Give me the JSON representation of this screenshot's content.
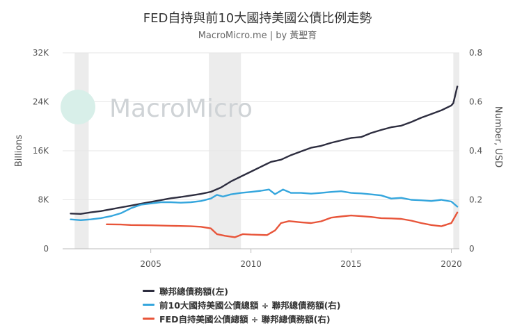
{
  "chart_data": {
    "type": "line",
    "title": "FED自持與前10大國持美國公債比例走勢",
    "subtitle": "MacroMicro.me | by 黃聖育",
    "watermark": "MacroMicro",
    "y_left": {
      "label": "Billions",
      "ticks": [
        "0",
        "8K",
        "16K",
        "24K",
        "32K"
      ],
      "range": [
        0,
        32000
      ]
    },
    "y_right": {
      "label": "Number, USD",
      "ticks": [
        "0",
        "0.2",
        "0.4",
        "0.6",
        "0.8"
      ],
      "range": [
        0,
        0.8
      ]
    },
    "x": {
      "ticks": [
        "2005",
        "2010",
        "2015",
        "2020"
      ],
      "range": [
        2000.6,
        2020.4
      ]
    },
    "recessions": [
      [
        2001.2,
        2001.9
      ],
      [
        2007.9,
        2009.5
      ],
      [
        2020.1,
        2020.4
      ]
    ],
    "series": [
      {
        "name": "聯邦總債務額(左)",
        "axis": "left",
        "color": "#2d2d3f",
        "points": [
          [
            2001.0,
            5750
          ],
          [
            2001.5,
            5700
          ],
          [
            2002.0,
            5950
          ],
          [
            2002.5,
            6150
          ],
          [
            2003.0,
            6450
          ],
          [
            2003.5,
            6750
          ],
          [
            2004.0,
            7050
          ],
          [
            2004.5,
            7350
          ],
          [
            2005.0,
            7650
          ],
          [
            2005.5,
            7950
          ],
          [
            2006.0,
            8250
          ],
          [
            2006.5,
            8450
          ],
          [
            2007.0,
            8700
          ],
          [
            2007.5,
            8950
          ],
          [
            2008.0,
            9300
          ],
          [
            2008.5,
            10000
          ],
          [
            2009.0,
            11000
          ],
          [
            2009.5,
            11800
          ],
          [
            2010.0,
            12600
          ],
          [
            2010.5,
            13400
          ],
          [
            2011.0,
            14200
          ],
          [
            2011.5,
            14550
          ],
          [
            2012.0,
            15300
          ],
          [
            2012.5,
            15900
          ],
          [
            2013.0,
            16500
          ],
          [
            2013.5,
            16800
          ],
          [
            2014.0,
            17300
          ],
          [
            2014.5,
            17700
          ],
          [
            2015.0,
            18100
          ],
          [
            2015.5,
            18250
          ],
          [
            2016.0,
            18900
          ],
          [
            2016.5,
            19400
          ],
          [
            2017.0,
            19850
          ],
          [
            2017.5,
            20100
          ],
          [
            2018.0,
            20700
          ],
          [
            2018.5,
            21400
          ],
          [
            2019.0,
            22000
          ],
          [
            2019.5,
            22600
          ],
          [
            2020.0,
            23400
          ],
          [
            2020.1,
            23800
          ],
          [
            2020.3,
            26500
          ]
        ]
      },
      {
        "name": "前10大國持美國公債總額 ÷ 聯邦總債務額(右)",
        "axis": "right",
        "color": "#35a6dd",
        "points": [
          [
            2001.0,
            0.12
          ],
          [
            2001.5,
            0.117
          ],
          [
            2002.0,
            0.12
          ],
          [
            2002.5,
            0.125
          ],
          [
            2003.0,
            0.133
          ],
          [
            2003.5,
            0.145
          ],
          [
            2004.0,
            0.165
          ],
          [
            2004.5,
            0.18
          ],
          [
            2005.0,
            0.185
          ],
          [
            2005.5,
            0.19
          ],
          [
            2006.0,
            0.19
          ],
          [
            2006.5,
            0.188
          ],
          [
            2007.0,
            0.19
          ],
          [
            2007.5,
            0.195
          ],
          [
            2008.0,
            0.205
          ],
          [
            2008.3,
            0.22
          ],
          [
            2008.6,
            0.213
          ],
          [
            2009.0,
            0.222
          ],
          [
            2009.5,
            0.228
          ],
          [
            2010.0,
            0.232
          ],
          [
            2010.5,
            0.237
          ],
          [
            2010.9,
            0.242
          ],
          [
            2011.2,
            0.223
          ],
          [
            2011.6,
            0.242
          ],
          [
            2012.0,
            0.228
          ],
          [
            2012.5,
            0.228
          ],
          [
            2013.0,
            0.225
          ],
          [
            2013.5,
            0.228
          ],
          [
            2014.0,
            0.232
          ],
          [
            2014.5,
            0.235
          ],
          [
            2015.0,
            0.228
          ],
          [
            2015.5,
            0.226
          ],
          [
            2016.0,
            0.222
          ],
          [
            2016.5,
            0.218
          ],
          [
            2017.0,
            0.205
          ],
          [
            2017.5,
            0.208
          ],
          [
            2018.0,
            0.2
          ],
          [
            2018.5,
            0.198
          ],
          [
            2019.0,
            0.195
          ],
          [
            2019.5,
            0.2
          ],
          [
            2020.0,
            0.193
          ],
          [
            2020.3,
            0.172
          ]
        ]
      },
      {
        "name": "FED自持美國公債總額 ÷ 聯邦總債務額(右)",
        "axis": "right",
        "color": "#e8553a",
        "points": [
          [
            2002.8,
            0.1
          ],
          [
            2003.5,
            0.099
          ],
          [
            2004.0,
            0.097
          ],
          [
            2005.0,
            0.096
          ],
          [
            2006.0,
            0.094
          ],
          [
            2007.0,
            0.092
          ],
          [
            2007.5,
            0.09
          ],
          [
            2008.0,
            0.083
          ],
          [
            2008.3,
            0.06
          ],
          [
            2008.7,
            0.053
          ],
          [
            2009.2,
            0.047
          ],
          [
            2009.6,
            0.06
          ],
          [
            2010.0,
            0.058
          ],
          [
            2010.8,
            0.056
          ],
          [
            2011.2,
            0.075
          ],
          [
            2011.5,
            0.105
          ],
          [
            2011.9,
            0.113
          ],
          [
            2012.5,
            0.108
          ],
          [
            2013.0,
            0.105
          ],
          [
            2013.5,
            0.112
          ],
          [
            2014.0,
            0.127
          ],
          [
            2014.5,
            0.132
          ],
          [
            2015.0,
            0.136
          ],
          [
            2015.5,
            0.133
          ],
          [
            2016.0,
            0.13
          ],
          [
            2016.5,
            0.125
          ],
          [
            2017.0,
            0.124
          ],
          [
            2017.5,
            0.122
          ],
          [
            2018.0,
            0.115
          ],
          [
            2018.5,
            0.105
          ],
          [
            2019.0,
            0.097
          ],
          [
            2019.5,
            0.092
          ],
          [
            2020.0,
            0.105
          ],
          [
            2020.3,
            0.148
          ]
        ]
      }
    ]
  }
}
